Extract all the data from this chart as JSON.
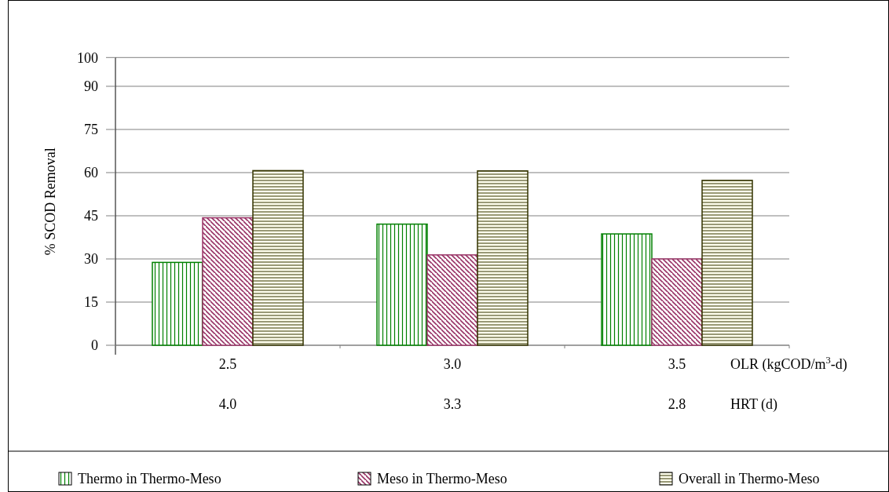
{
  "chart_data": {
    "type": "bar",
    "ylabel": "% SCOD Removal",
    "xlabel": "OLR (kgCOD/m$^{3}$-d)",
    "categories": [
      "2.5",
      "3.0",
      "3.5"
    ],
    "series": [
      {
        "name": "Thermo in Thermo-Meso",
        "color": "#008000",
        "values": [
          28.8,
          42.1,
          38.7
        ]
      },
      {
        "name": "Meso in Thermo-Meso",
        "color": "#993366",
        "values": [
          44.3,
          31.4,
          30.0
        ]
      },
      {
        "name": "Overall in Thermo-Meso",
        "color": "#333300",
        "values": [
          60.7,
          60.6,
          57.3
        ]
      }
    ],
    "ylim": [
      0,
      100
    ],
    "yticks": [
      0,
      15,
      30,
      45,
      60,
      75,
      90,
      100
    ],
    "grid": "y",
    "legend": "bottom",
    "annotations": [
      "4.0",
      "3.3",
      "2.8",
      "HRT (d)"
    ]
  }
}
